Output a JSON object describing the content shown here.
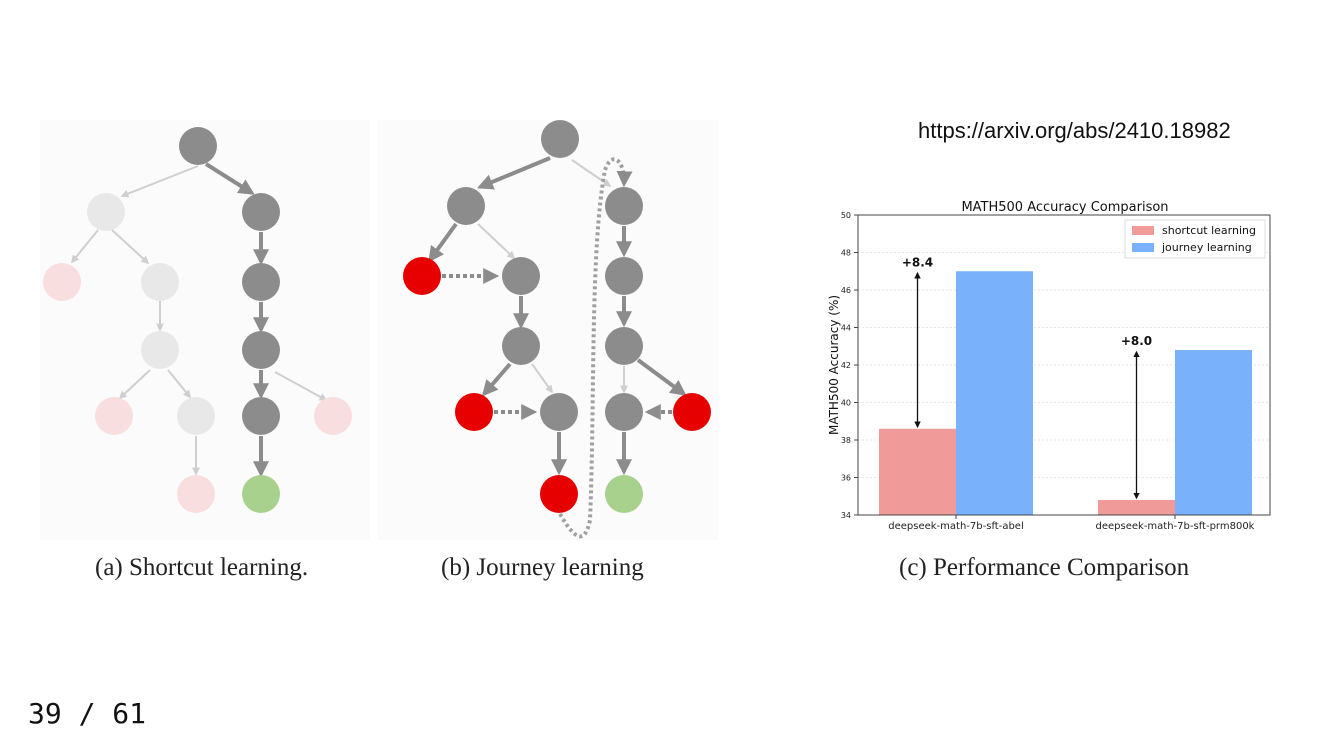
{
  "source_url": "https://arxiv.org/abs/2410.18982",
  "captions": {
    "a": "(a) Shortcut learning.",
    "b": "(b) Journey learning",
    "c": "(c) Performance Comparison"
  },
  "pagination": {
    "current": 39,
    "total": 61,
    "label": "39 / 61"
  },
  "colors": {
    "node_active": "#8c8c8c",
    "node_faded": "#e8e8e8",
    "node_error": "#e60000",
    "node_error_faded": "#f8dede",
    "node_goal": "#a9d18e",
    "shortcut_bar": "#f09a9a",
    "journey_bar": "#79b1fb"
  },
  "chart_data": {
    "type": "bar",
    "title": "MATH500 Accuracy Comparison",
    "xlabel": "",
    "ylabel": "MATH500 Accuracy (%)",
    "categories": [
      "deepseek-math-7b-sft-abel",
      "deepseek-math-7b-sft-prm800k"
    ],
    "series": [
      {
        "name": "shortcut learning",
        "values": [
          38.6,
          34.8
        ]
      },
      {
        "name": "journey learning",
        "values": [
          47.0,
          42.8
        ]
      }
    ],
    "annotations": [
      "+8.4",
      "+8.0"
    ],
    "ylim": [
      34,
      50
    ],
    "yticks": [
      34,
      36,
      38,
      40,
      42,
      44,
      46,
      48,
      50
    ],
    "grid": "horizontal",
    "legend": "top-right"
  }
}
